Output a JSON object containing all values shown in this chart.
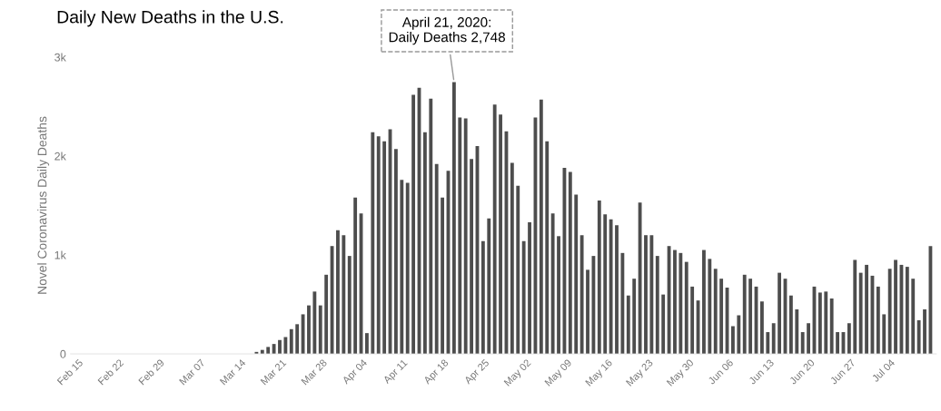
{
  "chart_data": {
    "type": "bar",
    "title": "Daily New Deaths in the U.S.",
    "ylabel": "Novel Coronavirus Daily Deaths",
    "annotations": [
      {
        "text": "April 21, 2020:\nDaily Deaths 2,748",
        "x": "2020-04-21",
        "y": 2748
      }
    ],
    "x": [
      "2020-03-18",
      "2020-03-19",
      "2020-03-20",
      "2020-03-21",
      "2020-03-22",
      "2020-03-23",
      "2020-03-24",
      "2020-03-25",
      "2020-03-26",
      "2020-03-27",
      "2020-03-28",
      "2020-03-29",
      "2020-03-30",
      "2020-03-31",
      "2020-04-01",
      "2020-04-02",
      "2020-04-03",
      "2020-04-04",
      "2020-04-05",
      "2020-04-06",
      "2020-04-07",
      "2020-04-08",
      "2020-04-09",
      "2020-04-10",
      "2020-04-11",
      "2020-04-12",
      "2020-04-13",
      "2020-04-14",
      "2020-04-15",
      "2020-04-16",
      "2020-04-17",
      "2020-04-18",
      "2020-04-19",
      "2020-04-20",
      "2020-04-21",
      "2020-04-22",
      "2020-04-23",
      "2020-04-24",
      "2020-04-25",
      "2020-04-26",
      "2020-04-27",
      "2020-04-28",
      "2020-04-29",
      "2020-04-30",
      "2020-05-01",
      "2020-05-02",
      "2020-05-03",
      "2020-05-04",
      "2020-05-05",
      "2020-05-06",
      "2020-05-07",
      "2020-05-08",
      "2020-05-09",
      "2020-05-10",
      "2020-05-11",
      "2020-05-12",
      "2020-05-13",
      "2020-05-14",
      "2020-05-15",
      "2020-05-16",
      "2020-05-17",
      "2020-05-18",
      "2020-05-19",
      "2020-05-20",
      "2020-05-21",
      "2020-05-22",
      "2020-05-23",
      "2020-05-24",
      "2020-05-25",
      "2020-05-26",
      "2020-05-27",
      "2020-05-28",
      "2020-05-29",
      "2020-05-30",
      "2020-05-31",
      "2020-06-01",
      "2020-06-02",
      "2020-06-03",
      "2020-06-04",
      "2020-06-05",
      "2020-06-06",
      "2020-06-07",
      "2020-06-08",
      "2020-06-09",
      "2020-06-10",
      "2020-06-11",
      "2020-06-12",
      "2020-06-13",
      "2020-06-14",
      "2020-06-15",
      "2020-06-16",
      "2020-06-17",
      "2020-06-18",
      "2020-06-19",
      "2020-06-20",
      "2020-06-21",
      "2020-06-22",
      "2020-06-23",
      "2020-06-24",
      "2020-06-25",
      "2020-06-26",
      "2020-06-27",
      "2020-06-28",
      "2020-06-29",
      "2020-06-30",
      "2020-07-01",
      "2020-07-02",
      "2020-07-03",
      "2020-07-04",
      "2020-07-05",
      "2020-07-06",
      "2020-07-07",
      "2020-07-08",
      "2020-07-09",
      "2020-07-10",
      "2020-07-11",
      "2020-07-12"
    ],
    "values": [
      20,
      40,
      70,
      100,
      140,
      170,
      250,
      300,
      400,
      490,
      630,
      490,
      800,
      1090,
      1250,
      1200,
      990,
      1580,
      1420,
      210,
      2240,
      2200,
      2150,
      2270,
      2070,
      1760,
      1730,
      2620,
      2690,
      2240,
      2580,
      1920,
      1580,
      1850,
      2748,
      2390,
      2380,
      1970,
      2100,
      1140,
      1370,
      2520,
      2420,
      2250,
      1930,
      1700,
      1140,
      1330,
      2390,
      2570,
      2150,
      1420,
      1190,
      1880,
      1840,
      1610,
      1200,
      850,
      990,
      1550,
      1410,
      1360,
      1300,
      1020,
      590,
      760,
      1530,
      1200,
      1200,
      990,
      600,
      1090,
      1050,
      1020,
      930,
      680,
      540,
      1050,
      960,
      860,
      760,
      670,
      280,
      390,
      800,
      760,
      680,
      530,
      220,
      310,
      820,
      760,
      590,
      450,
      220,
      310,
      680,
      620,
      630,
      560,
      220,
      220,
      310,
      950,
      820,
      900,
      790,
      680,
      400,
      860,
      950,
      900,
      880,
      760,
      340,
      450,
      1090
    ],
    "color": "#4d4d4d",
    "xticks": [
      {
        "value": "2020-02-15",
        "label": "Feb 15"
      },
      {
        "value": "2020-02-22",
        "label": "Feb 22"
      },
      {
        "value": "2020-02-29",
        "label": "Feb 29"
      },
      {
        "value": "2020-03-07",
        "label": "Mar 07"
      },
      {
        "value": "2020-03-14",
        "label": "Mar 14"
      },
      {
        "value": "2020-03-21",
        "label": "Mar 21"
      },
      {
        "value": "2020-03-28",
        "label": "Mar 28"
      },
      {
        "value": "2020-04-04",
        "label": "Apr 04"
      },
      {
        "value": "2020-04-11",
        "label": "Apr 11"
      },
      {
        "value": "2020-04-18",
        "label": "Apr 18"
      },
      {
        "value": "2020-04-25",
        "label": "Apr 25"
      },
      {
        "value": "2020-05-02",
        "label": "May 02"
      },
      {
        "value": "2020-05-09",
        "label": "May 09"
      },
      {
        "value": "2020-05-16",
        "label": "May 16"
      },
      {
        "value": "2020-05-23",
        "label": "May 23"
      },
      {
        "value": "2020-05-30",
        "label": "May 30"
      },
      {
        "value": "2020-06-06",
        "label": "Jun 06"
      },
      {
        "value": "2020-06-13",
        "label": "Jun 13"
      },
      {
        "value": "2020-06-20",
        "label": "Jun 20"
      },
      {
        "value": "2020-06-27",
        "label": "Jun 27"
      },
      {
        "value": "2020-07-04",
        "label": "Jul 04"
      }
    ],
    "xlim": [
      "2020-02-15",
      "2020-07-13"
    ],
    "ylim": [
      0,
      3000
    ],
    "yticks": [
      {
        "value": 0,
        "label": "0"
      },
      {
        "value": 1000,
        "label": "1k"
      },
      {
        "value": 2000,
        "label": "2k"
      },
      {
        "value": 3000,
        "label": "3k"
      }
    ]
  }
}
